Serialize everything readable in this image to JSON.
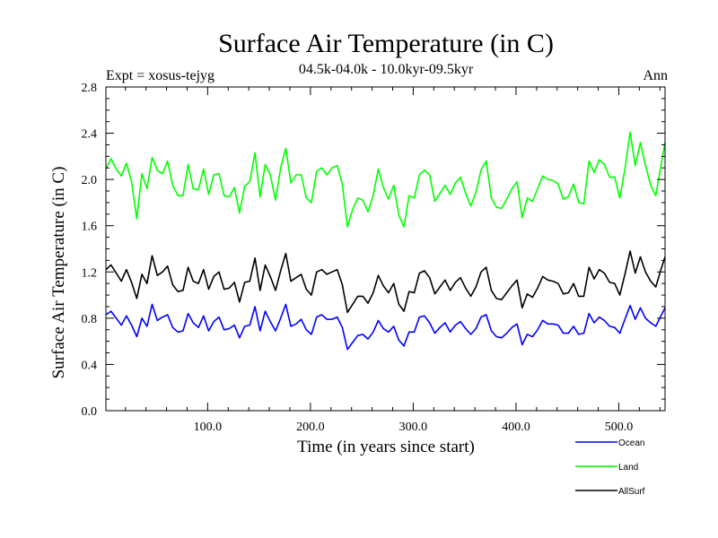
{
  "chart_data": {
    "type": "line",
    "title": "Surface Air Temperature (in C)",
    "subtitle": "04.5k-04.0k - 10.0kyr-09.5kyr",
    "left_label": "Expt = xosus-tejyg",
    "right_label": "Ann",
    "xlabel": "Time (in years since start)",
    "ylabel": "Surface Air Temperature (in C)",
    "xlim": [
      1,
      545
    ],
    "ylim": [
      0.0,
      2.8
    ],
    "x_ticks": [
      100,
      200,
      300,
      400,
      500
    ],
    "x_tick_labels": [
      "100.0",
      "200.0",
      "300.0",
      "400.0",
      "500.0"
    ],
    "y_ticks": [
      0.0,
      0.4,
      0.8,
      1.2,
      1.6,
      2.0,
      2.4,
      2.8
    ],
    "y_tick_labels": [
      "0.0",
      "0.4",
      "0.8",
      "1.2",
      "1.6",
      "2.0",
      "2.4",
      "2.8"
    ],
    "legend_position": "bottom-right, below plot",
    "grid": false,
    "series": [
      {
        "name": "Ocean",
        "color": "#0000ff",
        "sample_step": 5,
        "values": [
          0.83,
          0.86,
          0.8,
          0.74,
          0.82,
          0.74,
          0.64,
          0.8,
          0.73,
          0.92,
          0.78,
          0.81,
          0.83,
          0.72,
          0.68,
          0.69,
          0.84,
          0.76,
          0.72,
          0.82,
          0.69,
          0.77,
          0.81,
          0.7,
          0.71,
          0.74,
          0.63,
          0.73,
          0.74,
          0.9,
          0.69,
          0.86,
          0.77,
          0.69,
          0.8,
          0.92,
          0.73,
          0.75,
          0.79,
          0.7,
          0.66,
          0.81,
          0.83,
          0.79,
          0.79,
          0.81,
          0.72,
          0.53,
          0.59,
          0.65,
          0.66,
          0.62,
          0.68,
          0.78,
          0.71,
          0.68,
          0.73,
          0.61,
          0.56,
          0.68,
          0.68,
          0.81,
          0.82,
          0.76,
          0.67,
          0.72,
          0.76,
          0.68,
          0.74,
          0.77,
          0.71,
          0.66,
          0.71,
          0.81,
          0.83,
          0.69,
          0.64,
          0.63,
          0.67,
          0.72,
          0.75,
          0.57,
          0.66,
          0.64,
          0.7,
          0.78,
          0.75,
          0.75,
          0.74,
          0.67,
          0.67,
          0.73,
          0.66,
          0.67,
          0.84,
          0.76,
          0.81,
          0.78,
          0.73,
          0.72,
          0.67,
          0.79,
          0.91,
          0.79,
          0.89,
          0.8,
          0.76,
          0.73,
          0.82,
          0.89
        ]
      },
      {
        "name": "Land",
        "color": "#00ff00",
        "sample_step": 5,
        "values": [
          2.09,
          2.18,
          2.09,
          2.03,
          2.14,
          1.98,
          1.66,
          2.05,
          1.92,
          2.19,
          2.08,
          2.05,
          2.16,
          1.95,
          1.86,
          1.86,
          2.13,
          1.92,
          1.91,
          2.09,
          1.87,
          2.04,
          2.05,
          1.86,
          1.85,
          1.93,
          1.71,
          1.94,
          1.98,
          2.23,
          1.85,
          2.13,
          2.04,
          1.82,
          2.1,
          2.27,
          1.97,
          2.04,
          2.04,
          1.84,
          1.8,
          2.07,
          2.1,
          2.04,
          2.1,
          2.12,
          1.96,
          1.59,
          1.74,
          1.84,
          1.82,
          1.72,
          1.86,
          2.09,
          1.93,
          1.83,
          1.95,
          1.69,
          1.59,
          1.86,
          1.84,
          2.04,
          2.08,
          2.04,
          1.81,
          1.88,
          1.95,
          1.87,
          1.97,
          2.02,
          1.88,
          1.77,
          1.89,
          2.08,
          2.16,
          1.84,
          1.76,
          1.75,
          1.83,
          1.92,
          1.98,
          1.67,
          1.84,
          1.81,
          1.92,
          2.03,
          2.0,
          1.99,
          1.96,
          1.83,
          1.85,
          1.96,
          1.8,
          1.79,
          2.16,
          2.06,
          2.17,
          2.13,
          2.02,
          2.02,
          1.84,
          2.09,
          2.41,
          2.12,
          2.32,
          2.12,
          1.95,
          1.86,
          2.12,
          2.32
        ]
      },
      {
        "name": "AllSurf",
        "color": "#000000",
        "sample_step": 5,
        "values": [
          1.22,
          1.26,
          1.19,
          1.12,
          1.22,
          1.11,
          0.97,
          1.18,
          1.1,
          1.34,
          1.17,
          1.2,
          1.25,
          1.09,
          1.03,
          1.04,
          1.24,
          1.12,
          1.1,
          1.22,
          1.05,
          1.16,
          1.2,
          1.05,
          1.06,
          1.11,
          0.94,
          1.11,
          1.12,
          1.32,
          1.04,
          1.26,
          1.16,
          1.04,
          1.21,
          1.36,
          1.12,
          1.15,
          1.18,
          1.05,
          1.0,
          1.2,
          1.22,
          1.18,
          1.2,
          1.22,
          1.09,
          0.85,
          0.92,
          0.99,
          0.99,
          0.93,
          1.02,
          1.17,
          1.08,
          1.02,
          1.1,
          0.92,
          0.86,
          1.03,
          1.02,
          1.19,
          1.21,
          1.15,
          1.01,
          1.07,
          1.13,
          1.04,
          1.11,
          1.15,
          1.06,
          0.99,
          1.07,
          1.2,
          1.24,
          1.04,
          0.97,
          0.96,
          1.02,
          1.08,
          1.13,
          0.89,
          1.01,
          0.98,
          1.06,
          1.16,
          1.13,
          1.12,
          1.1,
          1.01,
          1.02,
          1.1,
          0.99,
          0.99,
          1.24,
          1.14,
          1.22,
          1.19,
          1.11,
          1.1,
          1.0,
          1.18,
          1.38,
          1.19,
          1.33,
          1.2,
          1.12,
          1.07,
          1.22,
          1.33
        ]
      }
    ]
  }
}
